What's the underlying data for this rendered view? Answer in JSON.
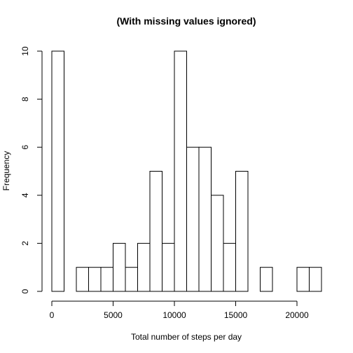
{
  "chart_data": {
    "type": "bar",
    "title": "(With missing values ignored)",
    "xlabel": "Total number of steps per day",
    "ylabel": "Frequency",
    "xlim": [
      0,
      22000
    ],
    "ylim": [
      0,
      10
    ],
    "bin_width": 1000,
    "bins": [
      {
        "start": 0,
        "end": 1000,
        "count": 10
      },
      {
        "start": 1000,
        "end": 2000,
        "count": 0
      },
      {
        "start": 2000,
        "end": 3000,
        "count": 1
      },
      {
        "start": 3000,
        "end": 4000,
        "count": 1
      },
      {
        "start": 4000,
        "end": 5000,
        "count": 1
      },
      {
        "start": 5000,
        "end": 6000,
        "count": 2
      },
      {
        "start": 6000,
        "end": 7000,
        "count": 1
      },
      {
        "start": 7000,
        "end": 8000,
        "count": 2
      },
      {
        "start": 8000,
        "end": 9000,
        "count": 5
      },
      {
        "start": 9000,
        "end": 10000,
        "count": 2
      },
      {
        "start": 10000,
        "end": 11000,
        "count": 10
      },
      {
        "start": 11000,
        "end": 12000,
        "count": 6
      },
      {
        "start": 12000,
        "end": 13000,
        "count": 6
      },
      {
        "start": 13000,
        "end": 14000,
        "count": 4
      },
      {
        "start": 14000,
        "end": 15000,
        "count": 2
      },
      {
        "start": 15000,
        "end": 16000,
        "count": 5
      },
      {
        "start": 16000,
        "end": 17000,
        "count": 0
      },
      {
        "start": 17000,
        "end": 18000,
        "count": 1
      },
      {
        "start": 18000,
        "end": 19000,
        "count": 0
      },
      {
        "start": 19000,
        "end": 20000,
        "count": 0
      },
      {
        "start": 20000,
        "end": 21000,
        "count": 1
      },
      {
        "start": 21000,
        "end": 22000,
        "count": 1
      }
    ],
    "x_ticks": [
      0,
      5000,
      10000,
      15000,
      20000
    ],
    "x_tick_labels": [
      "0",
      "5000",
      "10000",
      "15000",
      "20000"
    ],
    "y_ticks": [
      0,
      2,
      4,
      6,
      8,
      10
    ],
    "y_tick_labels": [
      "0",
      "2",
      "4",
      "6",
      "8",
      "10"
    ],
    "grid": false,
    "legend": "none"
  }
}
